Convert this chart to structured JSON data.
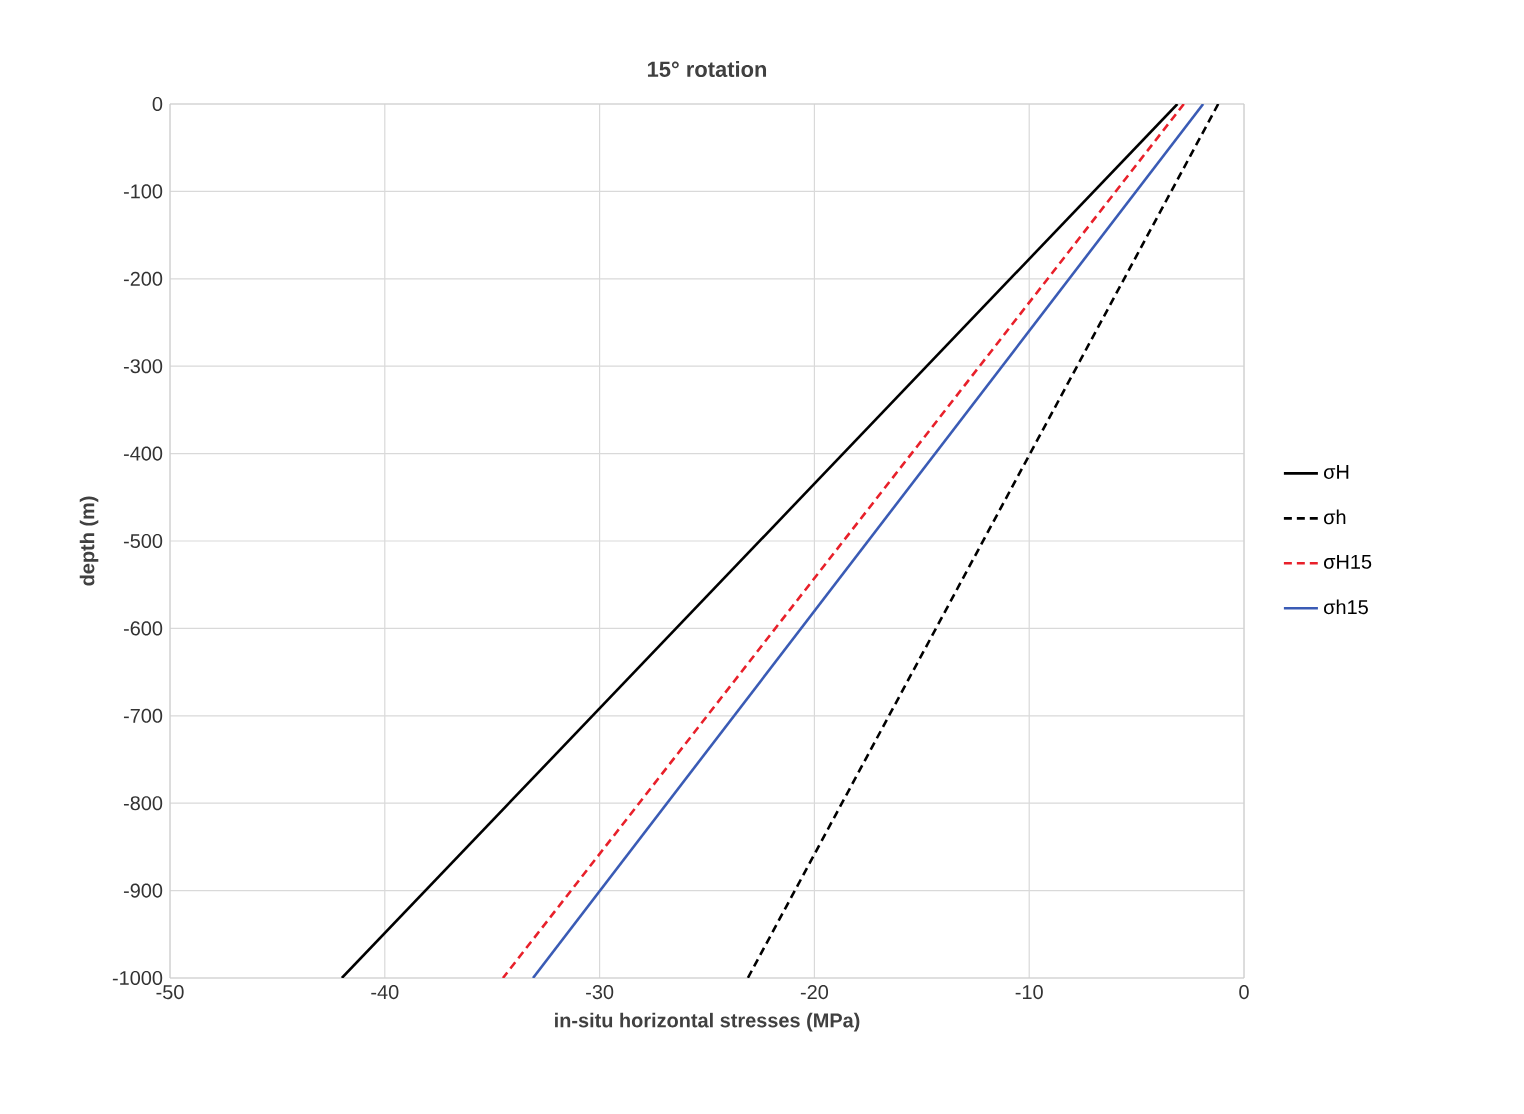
{
  "chart_data": {
    "type": "line",
    "title": "15° rotation",
    "xlabel": "in-situ horizontal stresses (MPa)",
    "ylabel": "depth (m)",
    "xlim": [
      -50,
      0
    ],
    "xticks": [
      -50,
      -40,
      -30,
      -20,
      -10,
      0
    ],
    "ylim": [
      -1000,
      0
    ],
    "yticks": [
      -1000,
      -900,
      -800,
      -700,
      -600,
      -500,
      -400,
      -300,
      -200,
      -100,
      0
    ],
    "grid": true,
    "legend": "right",
    "marker": "none",
    "series": [
      {
        "name": "σH",
        "color": "#000000",
        "line_style": "solid",
        "x": [
          -3.1,
          -42.0
        ],
        "values": [
          0,
          -1000
        ]
      },
      {
        "name": "σh",
        "color": "#000000",
        "line_style": "dashed",
        "x": [
          -1.2,
          -23.1
        ],
        "values": [
          0,
          -1000
        ]
      },
      {
        "name": "σH15",
        "color": "#e8202a",
        "line_style": "dashed",
        "x": [
          -2.8,
          -34.5
        ],
        "values": [
          0,
          -1000
        ]
      },
      {
        "name": "σh15",
        "color": "#3a5bb5",
        "line_style": "solid",
        "x": [
          -1.9,
          -33.1
        ],
        "values": [
          0,
          -1000
        ]
      }
    ]
  }
}
